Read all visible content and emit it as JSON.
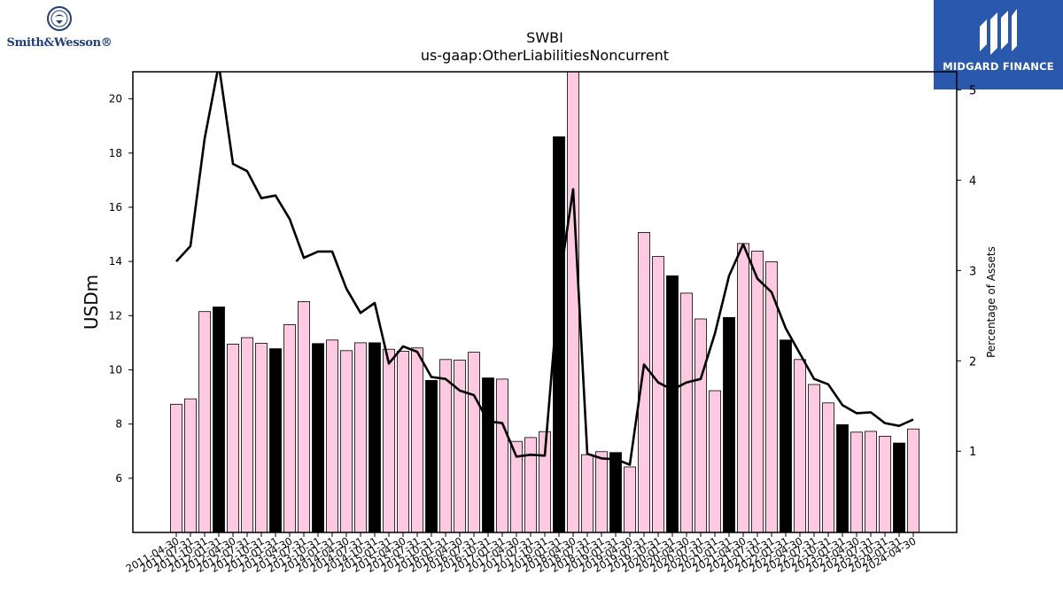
{
  "brand": {
    "left_logo_text": "Smith&Wesson®",
    "right_logo_text": "MIDGARD FINANCE"
  },
  "chart_data": {
    "type": "bar",
    "title": "SWBI",
    "subtitle": "us-gaap:OtherLiabilitiesNoncurrent",
    "ylabel": "USDm",
    "y2label": "Percentage of Assets",
    "ylim": [
      4,
      21
    ],
    "y2lim": [
      0.1,
      5.2
    ],
    "yticks": [
      6,
      8,
      10,
      12,
      14,
      16,
      18,
      20
    ],
    "y2ticks": [
      1,
      2,
      3,
      4,
      5
    ],
    "grid": false,
    "legend": "none",
    "categories": [
      "2011-04-30",
      "2011-07-31",
      "2011-10-31",
      "2012-01-31",
      "2012-04-30",
      "2012-07-31",
      "2012-10-31",
      "2013-01-31",
      "2013-04-30",
      "2013-07-31",
      "2013-10-31",
      "2014-01-31",
      "2014-04-30",
      "2014-07-31",
      "2014-10-31",
      "2015-01-31",
      "2015-04-30",
      "2015-07-31",
      "2015-10-31",
      "2016-01-31",
      "2016-04-30",
      "2016-07-31",
      "2016-10-31",
      "2017-01-31",
      "2017-04-30",
      "2017-07-31",
      "2017-10-31",
      "2018-01-31",
      "2018-04-30",
      "2018-07-31",
      "2018-10-31",
      "2019-01-31",
      "2019-04-30",
      "2019-07-31",
      "2019-10-31",
      "2020-01-31",
      "2020-04-30",
      "2020-07-31",
      "2020-10-31",
      "2021-01-31",
      "2021-04-30",
      "2021-07-31",
      "2021-10-31",
      "2022-01-31",
      "2022-04-30",
      "2022-07-31",
      "2022-10-31",
      "2023-01-31",
      "2023-04-30",
      "2023-07-31",
      "2023-10-31",
      "2024-01-31",
      "2024-04-30"
    ],
    "values": [
      8.73,
      8.93,
      12.15,
      12.32,
      10.95,
      11.19,
      10.98,
      10.78,
      11.67,
      12.52,
      10.97,
      11.1,
      10.71,
      11.0,
      11.0,
      10.76,
      10.69,
      10.81,
      9.61,
      10.38,
      10.36,
      10.65,
      9.7,
      9.66,
      7.36,
      7.5,
      7.72,
      18.6,
      21.1,
      6.87,
      6.98,
      6.95,
      6.42,
      15.07,
      14.18,
      13.47,
      12.83,
      11.88,
      9.23,
      11.93,
      14.66,
      14.38,
      13.99,
      11.1,
      10.38,
      9.46,
      8.78,
      7.98,
      7.7,
      7.73,
      7.55,
      7.3,
      7.82
    ],
    "highlight_color": "#000000",
    "bar_color": "#ffc9e1",
    "line_color": "#000000",
    "highlight_indices": [
      3,
      7,
      10,
      14,
      18,
      22,
      27,
      31,
      35,
      39,
      43,
      47,
      51
    ],
    "line_values": [
      3.1,
      3.27,
      4.46,
      5.28,
      4.18,
      4.1,
      3.8,
      3.83,
      3.57,
      3.14,
      3.21,
      3.21,
      2.8,
      2.53,
      2.64,
      1.97,
      2.16,
      2.1,
      1.82,
      1.8,
      1.67,
      1.62,
      1.33,
      1.31,
      0.94,
      0.96,
      0.95,
      2.84,
      3.9,
      0.97,
      0.92,
      0.91,
      0.85,
      1.96,
      1.76,
      1.68,
      1.76,
      1.8,
      2.3,
      2.94,
      3.29,
      2.91,
      2.76,
      2.36,
      2.08,
      1.8,
      1.74,
      1.51,
      1.42,
      1.43,
      1.31,
      1.28,
      1.35
    ]
  }
}
